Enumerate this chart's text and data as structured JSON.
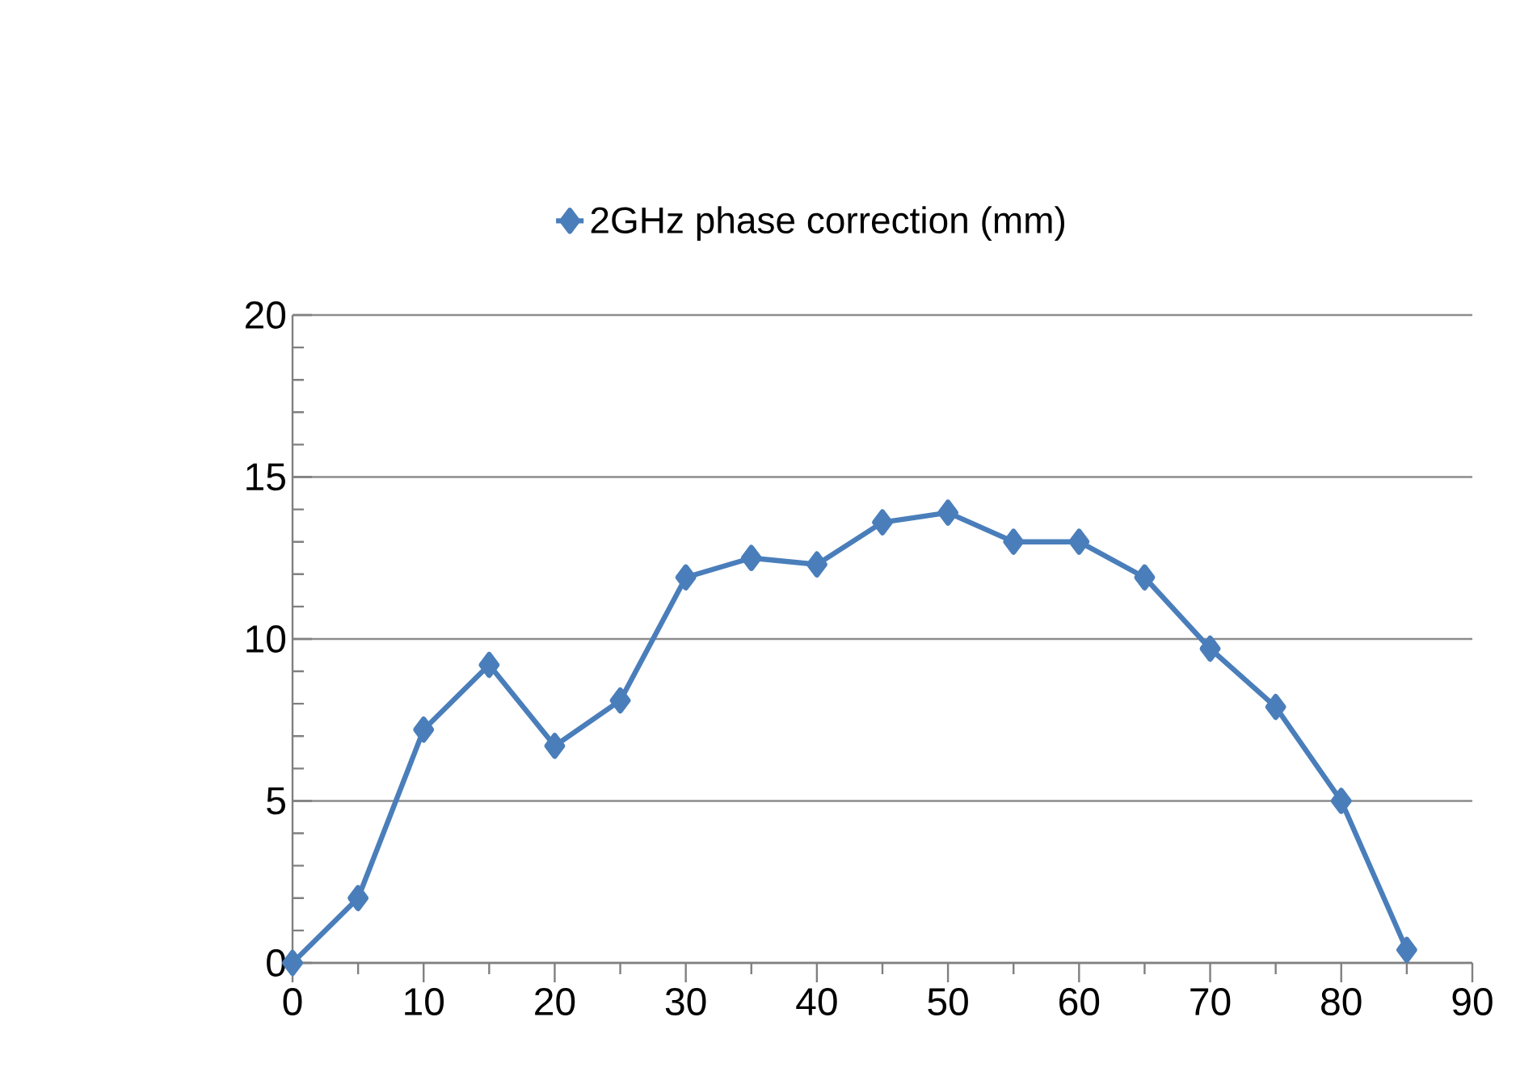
{
  "chart_data": {
    "type": "line",
    "legend": "top",
    "grid": "y",
    "marker": "diamond",
    "line_style": "solid",
    "x": [
      0,
      5,
      10,
      15,
      20,
      25,
      30,
      35,
      40,
      45,
      50,
      55,
      60,
      65,
      70,
      75,
      80,
      85
    ],
    "xlim": [
      0,
      90
    ],
    "xticks": [
      0,
      10,
      20,
      30,
      40,
      50,
      60,
      70,
      80,
      90
    ],
    "ylim": [
      0,
      20
    ],
    "yticks": [
      0,
      5,
      10,
      15,
      20
    ],
    "series": [
      {
        "name": "2GHz phase correction (mm)",
        "color": "#4a7ebb",
        "values": [
          0,
          2.0,
          7.2,
          9.2,
          6.7,
          8.1,
          11.9,
          12.5,
          12.3,
          13.6,
          13.9,
          13.0,
          13.0,
          11.9,
          9.7,
          7.9,
          5.0,
          0.4
        ]
      }
    ]
  }
}
